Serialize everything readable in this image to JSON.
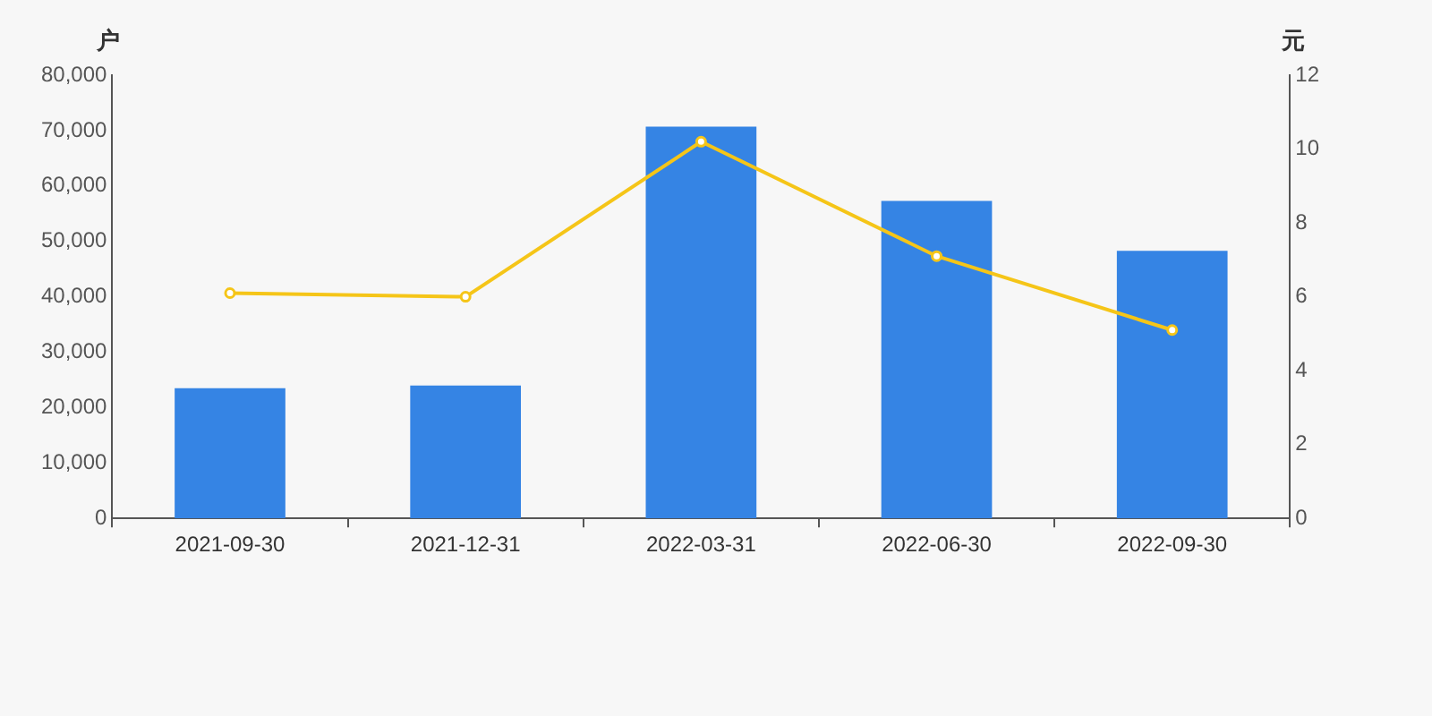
{
  "chart_data": {
    "type": "bar",
    "ylabel": "户",
    "y2label": "元",
    "categories": [
      "2021-09-30",
      "2021-12-31",
      "2022-03-31",
      "2022-06-30",
      "2022-09-30"
    ],
    "series": [
      {
        "color": "#3584e4",
        "values": [
          23500,
          24000,
          70700,
          57300,
          48300
        ]
      },
      {
        "type": "line",
        "axis": "y2",
        "color": "#f5c518",
        "marker": "circle",
        "values": [
          6.1,
          6.0,
          10.2,
          7.1,
          5.1
        ]
      }
    ],
    "ylim": [
      0,
      80000
    ],
    "yticks": [
      {
        "value": 0,
        "label": "0"
      },
      {
        "value": 10000,
        "label": "10,000"
      },
      {
        "value": 20000,
        "label": "20,000"
      },
      {
        "value": 30000,
        "label": "30,000"
      },
      {
        "value": 40000,
        "label": "40,000"
      },
      {
        "value": 50000,
        "label": "50,000"
      },
      {
        "value": 60000,
        "label": "60,000"
      },
      {
        "value": 70000,
        "label": "70,000"
      },
      {
        "value": 80000,
        "label": "80,000"
      }
    ],
    "y2lim": [
      0,
      12
    ],
    "y2ticks": [
      0,
      2,
      4,
      6,
      8,
      10,
      12
    ],
    "grid": false,
    "legend": false
  }
}
